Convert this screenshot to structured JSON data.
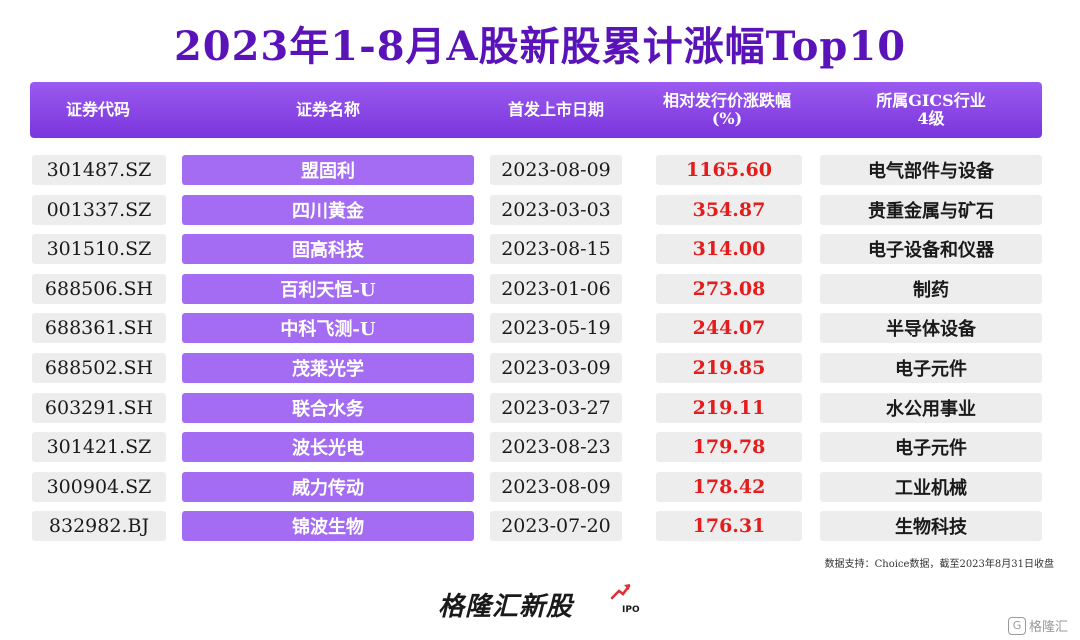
{
  "title": "2023年1-8月A股新股累计涨幅Top10",
  "header": {
    "code": "证券代码",
    "name": "证券名称",
    "date": "首发上市日期",
    "pct_line1": "相对发行价涨跌幅",
    "pct_line2": "(%)",
    "industry_line1": "所属GICS行业",
    "industry_line2": "4级"
  },
  "rows": [
    {
      "code": "301487.SZ",
      "name": "盟固利",
      "date": "2023-08-09",
      "pct": "1165.60",
      "industry": "电气部件与设备"
    },
    {
      "code": "001337.SZ",
      "name": "四川黄金",
      "date": "2023-03-03",
      "pct": "354.87",
      "industry": "贵重金属与矿石"
    },
    {
      "code": "301510.SZ",
      "name": "固高科技",
      "date": "2023-08-15",
      "pct": "314.00",
      "industry": "电子设备和仪器"
    },
    {
      "code": "688506.SH",
      "name": "百利天恒-U",
      "date": "2023-01-06",
      "pct": "273.08",
      "industry": "制药"
    },
    {
      "code": "688361.SH",
      "name": "中科飞测-U",
      "date": "2023-05-19",
      "pct": "244.07",
      "industry": "半导体设备"
    },
    {
      "code": "688502.SH",
      "name": "茂莱光学",
      "date": "2023-03-09",
      "pct": "219.85",
      "industry": "电子元件"
    },
    {
      "code": "603291.SH",
      "name": "联合水务",
      "date": "2023-03-27",
      "pct": "219.11",
      "industry": "水公用事业"
    },
    {
      "code": "301421.SZ",
      "name": "波长光电",
      "date": "2023-08-23",
      "pct": "179.78",
      "industry": "电子元件"
    },
    {
      "code": "300904.SZ",
      "name": "威力传动",
      "date": "2023-08-09",
      "pct": "178.42",
      "industry": "工业机械"
    },
    {
      "code": "832982.BJ",
      "name": "锦波生物",
      "date": "2023-07-20",
      "pct": "176.31",
      "industry": "生物科技"
    }
  ],
  "source": "数据支持：Choice数据，截至2023年8月31日收盘",
  "logo": {
    "text": "格隆汇新股",
    "sub": "IPO"
  },
  "watermark": {
    "icon": "G",
    "text": "格隆汇"
  },
  "colors": {
    "title": "#5a13b8",
    "header": "#8a45e6",
    "name_cell": "#a36cf2",
    "pct": "#e51c1c"
  }
}
